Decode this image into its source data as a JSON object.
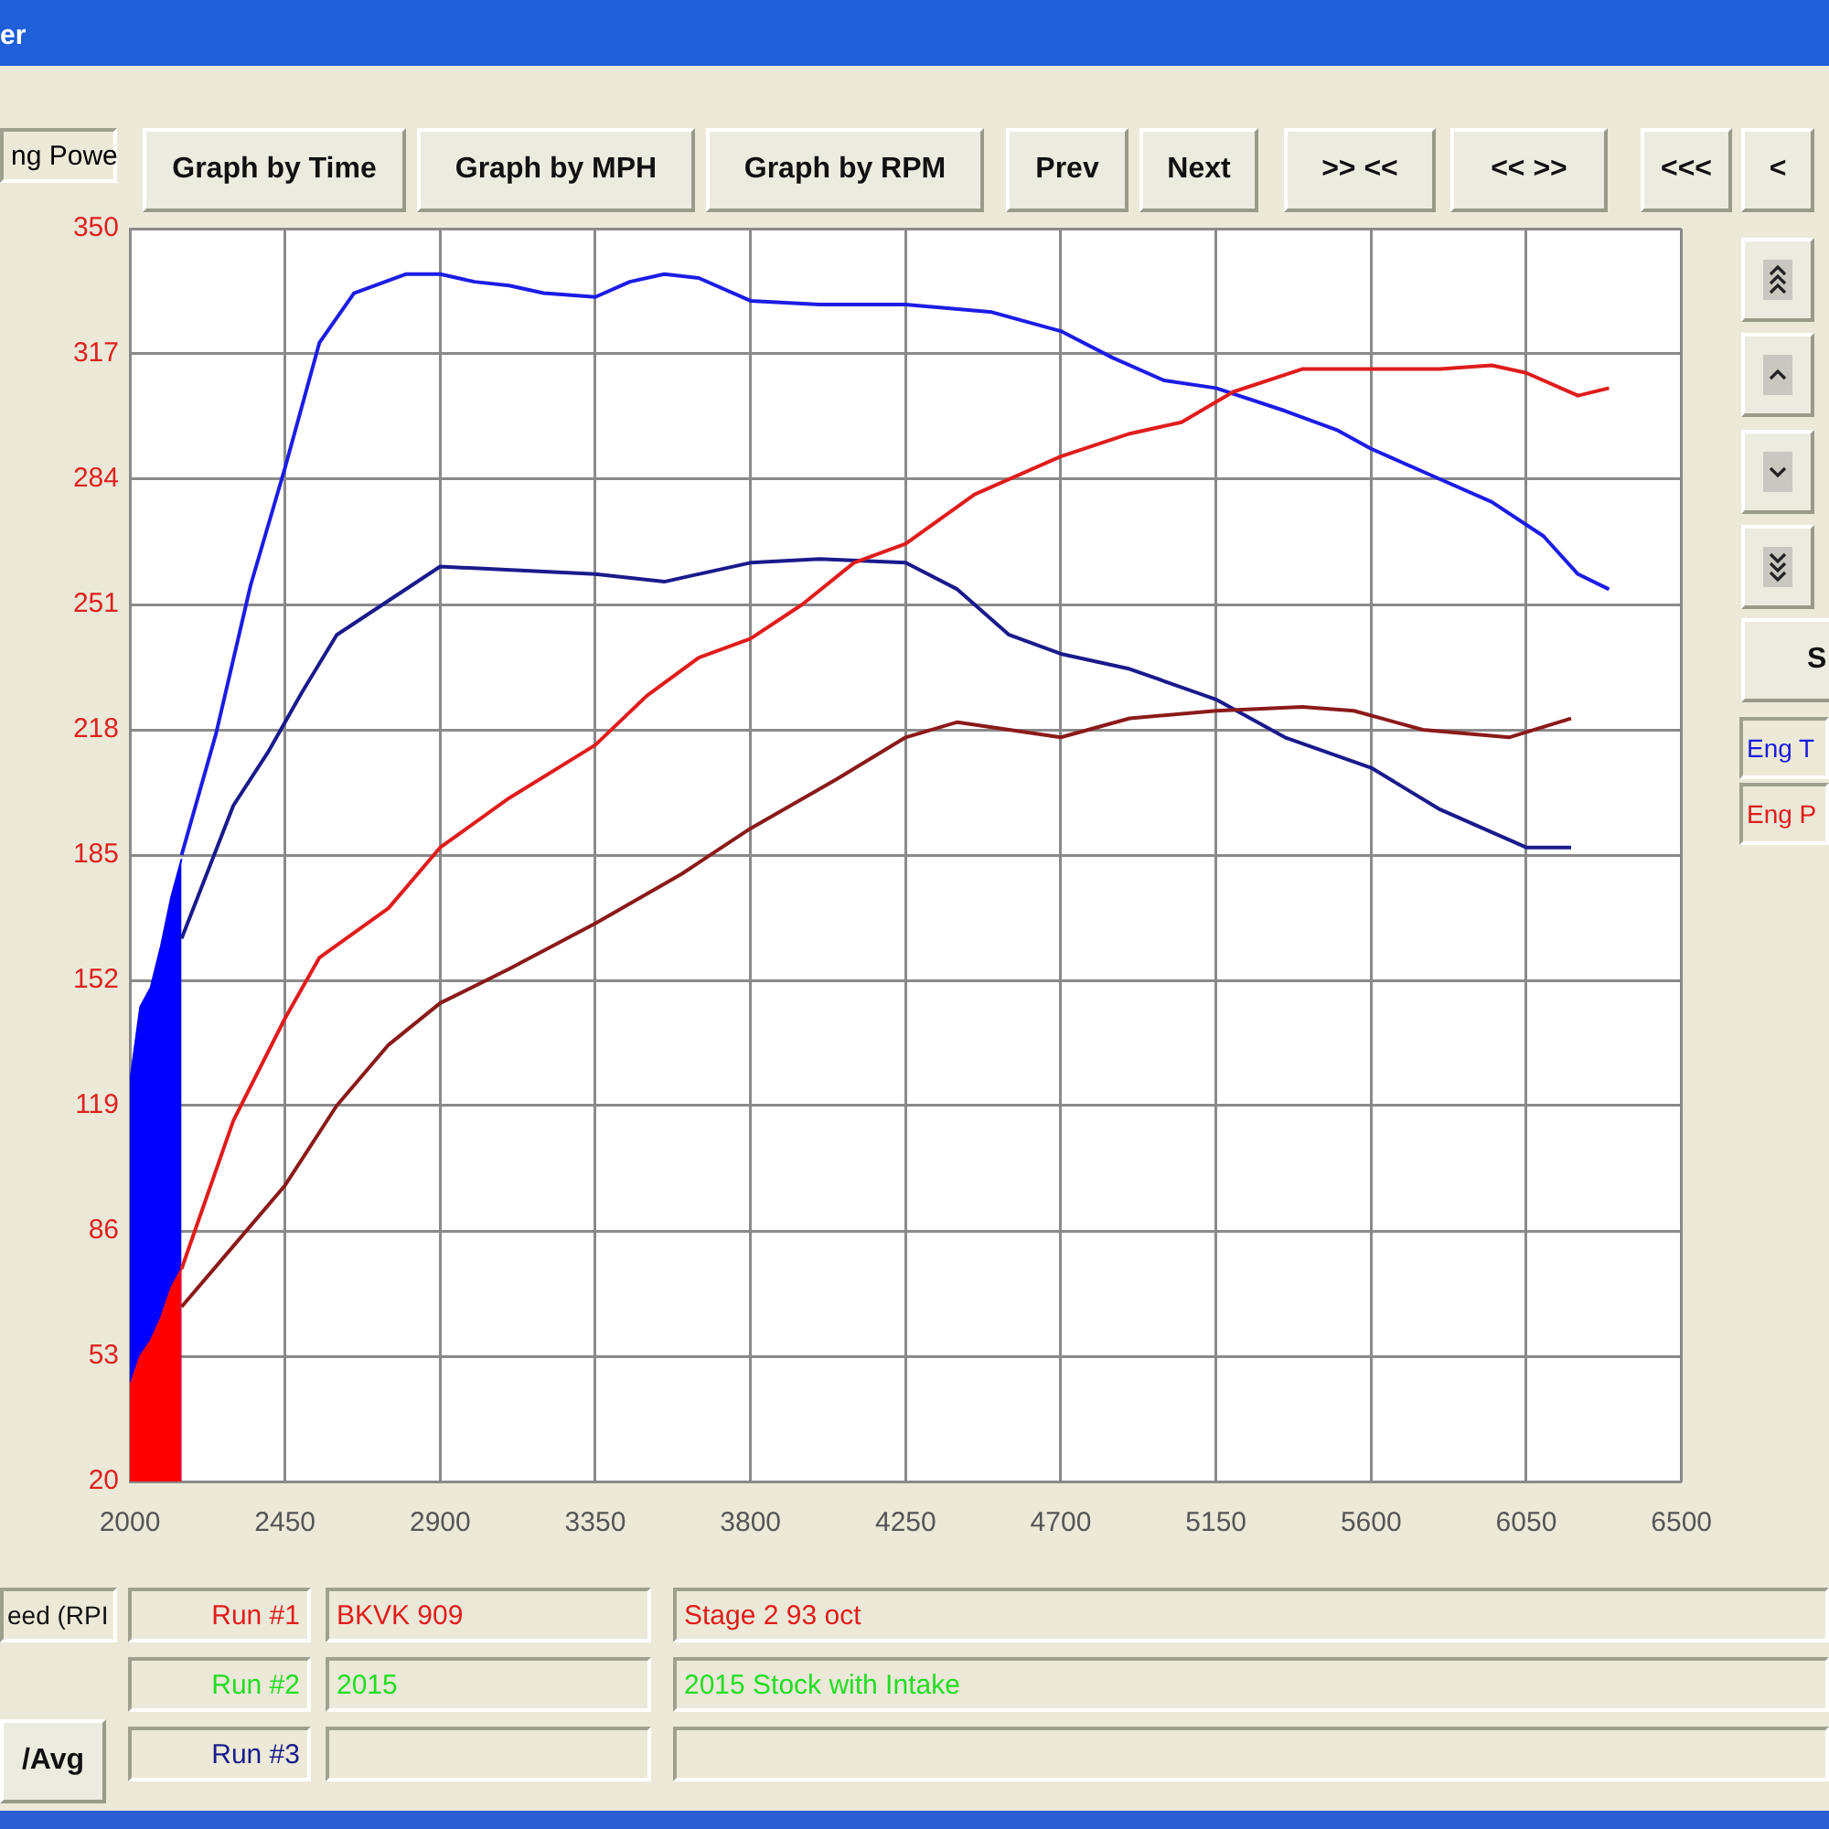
{
  "chart_data": {
    "type": "line",
    "ylabel": "ng Powe",
    "xlim": [
      2000,
      6500
    ],
    "xticks": [
      2000,
      2450,
      2900,
      3350,
      3800,
      4250,
      4700,
      5150,
      5600,
      6050,
      6500
    ],
    "ylim": [
      20,
      350
    ],
    "yticks": [
      20,
      53,
      86,
      119,
      152,
      185,
      218,
      251,
      284,
      317,
      350
    ],
    "grid": true,
    "series": [
      {
        "type": "area",
        "color": "#0000ff",
        "x": [
          2000,
          2030,
          2060,
          2090,
          2120,
          2150
        ],
        "values": [
          125,
          145,
          150,
          161,
          174,
          184
        ]
      },
      {
        "type": "area",
        "color": "#ff0000",
        "x": [
          2000,
          2030,
          2060,
          2090,
          2120,
          2150
        ],
        "values": [
          45,
          53,
          57,
          63,
          71,
          76
        ]
      },
      {
        "type": "line",
        "color": "#1c1ce6",
        "x": [
          2150,
          2250,
          2350,
          2450,
          2550,
          2650,
          2800,
          2900,
          3000,
          3100,
          3200,
          3350,
          3450,
          3550,
          3650,
          3800,
          4000,
          4250,
          4500,
          4700,
          4850,
          5000,
          5150,
          5350,
          5500,
          5600,
          5800,
          5950,
          6100,
          6200,
          6290
        ],
        "values": [
          185,
          217,
          256,
          287,
          320,
          333,
          338,
          338,
          336,
          335,
          333,
          332,
          336,
          338,
          337,
          331,
          330,
          330,
          328,
          323,
          316,
          310,
          308,
          302,
          297,
          292,
          284,
          278,
          269,
          259,
          255
        ]
      },
      {
        "type": "line",
        "color": "#1a1a8c",
        "x": [
          2150,
          2300,
          2400,
          2500,
          2600,
          2900,
          3350,
          3550,
          3800,
          4000,
          4250,
          4400,
          4550,
          4700,
          4900,
          5150,
          5350,
          5600,
          5800,
          6050,
          6180
        ],
        "values": [
          163,
          198,
          212,
          228,
          243,
          261,
          259,
          257,
          262,
          263,
          262,
          255,
          243,
          238,
          234,
          226,
          216,
          208,
          197,
          187,
          187
        ]
      },
      {
        "type": "line",
        "color": "#e01c1c",
        "x": [
          2150,
          2300,
          2450,
          2550,
          2750,
          2900,
          3100,
          3350,
          3500,
          3650,
          3800,
          3950,
          4100,
          4250,
          4450,
          4700,
          4900,
          5050,
          5200,
          5400,
          5600,
          5800,
          5950,
          6050,
          6200,
          6290
        ],
        "values": [
          76,
          115,
          142,
          158,
          171,
          187,
          200,
          214,
          227,
          237,
          242,
          251,
          262,
          267,
          280,
          290,
          296,
          299,
          307,
          313,
          313,
          313,
          314,
          312,
          306,
          308
        ]
      },
      {
        "type": "line",
        "color": "#8b1a1a",
        "x": [
          2150,
          2300,
          2450,
          2600,
          2750,
          2900,
          3100,
          3350,
          3600,
          3800,
          4050,
          4250,
          4400,
          4550,
          4700,
          4900,
          5150,
          5400,
          5550,
          5750,
          6000,
          6180
        ],
        "values": [
          66,
          82,
          98,
          119,
          135,
          146,
          155,
          167,
          180,
          192,
          205,
          216,
          220,
          218,
          216,
          221,
          223,
          224,
          223,
          218,
          216,
          221
        ]
      }
    ],
    "annotations": [
      "Graph by Time",
      "Graph by MPH",
      "Graph by RPM",
      "Prev",
      "Next",
      ">> <<",
      "<< >>",
      "<<<",
      "<",
      "S",
      "Eng T",
      "Eng P",
      "eed (RPI",
      "/Avg",
      "Run #1",
      "BKVK 909",
      "Stage 2 93 oct",
      "Run #2",
      "2015",
      "2015 Stock with Intake",
      "Run #3",
      "er"
    ]
  }
}
